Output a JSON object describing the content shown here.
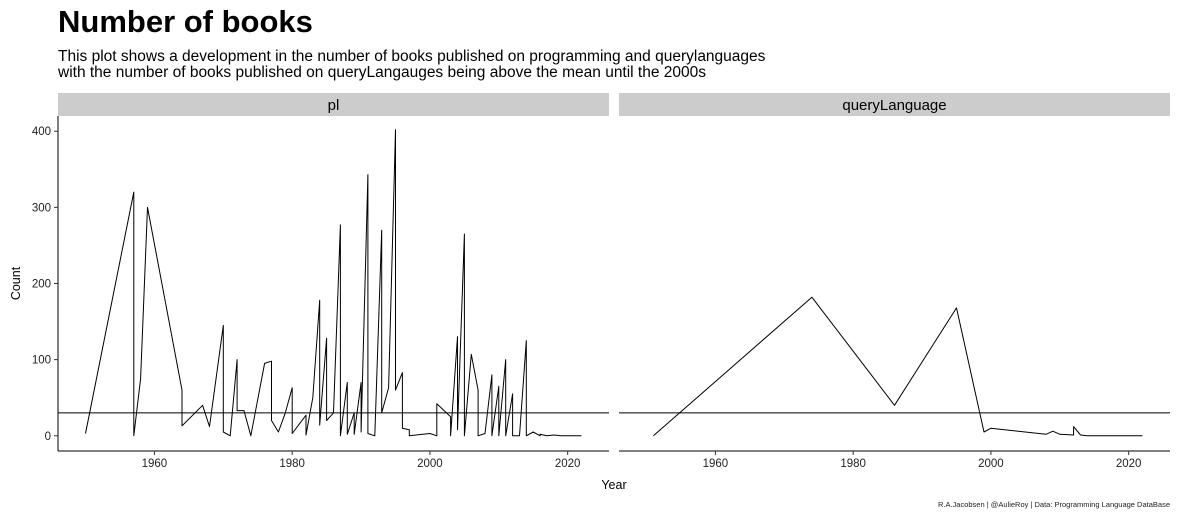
{
  "title": "Number of books",
  "subtitle_lines": [
    "This plot shows a development in the number of books published on programming and querylanguages",
    "with the number of books published on queryLangauges being above the mean until the 2000s"
  ],
  "caption": "R.A.Jacobsen | @AulieRoy | Data: Programming Language DataBase",
  "chart_data": {
    "type": "line",
    "xlabel": "Year",
    "ylabel": "Count",
    "xlim": [
      1946,
      2026
    ],
    "ylim": [
      -20,
      420
    ],
    "x_ticks": [
      1960,
      1980,
      2000,
      2020
    ],
    "y_ticks": [
      0,
      100,
      200,
      300,
      400
    ],
    "mean_line": 30,
    "line_color": "#000000",
    "strip_color": "#cccccc",
    "panels": [
      {
        "strip": "pl",
        "series": [
          {
            "x": [
              1950,
              1957,
              1957,
              1958,
              1959,
              1964,
              1964,
              1967,
              1968,
              1970,
              1970,
              1971,
              1972,
              1972,
              1973,
              1974,
              1976,
              1977,
              1977,
              1978,
              1979,
              1980,
              1980,
              1982,
              1982,
              1983,
              1984,
              1984,
              1985,
              1985,
              1986,
              1987,
              1987,
              1988,
              1988,
              1989,
              1989,
              1990,
              1990,
              1991,
              1991,
              1992,
              1993,
              1993,
              1994,
              1995,
              1995,
              1996,
              1996,
              1997,
              1997,
              1999,
              2000,
              2001,
              2001,
              2003,
              2003,
              2004,
              2004,
              2005,
              2005,
              2006,
              2007,
              2007,
              2008,
              2009,
              2009,
              2010,
              2010,
              2011,
              2011,
              2012,
              2012,
              2013,
              2014,
              2014,
              2015,
              2016,
              2016,
              2017,
              2018,
              2019,
              2022
            ],
            "y": [
              3,
              320,
              0,
              75,
              300,
              60,
              13,
              40,
              12,
              145,
              5,
              0,
              100,
              33,
              33,
              0,
              95,
              98,
              20,
              5,
              30,
              63,
              3,
              27,
              1,
              50,
              178,
              14,
              128,
              20,
              30,
              277,
              0,
              70,
              2,
              30,
              2,
              70,
              5,
              343,
              3,
              0,
              270,
              30,
              63,
              402,
              60,
              83,
              10,
              8,
              0,
              2,
              3,
              0,
              42,
              25,
              0,
              130,
              8,
              265,
              0,
              107,
              60,
              0,
              3,
              80,
              0,
              65,
              0,
              100,
              0,
              55,
              0,
              0,
              125,
              0,
              5,
              0,
              2,
              0,
              1,
              0,
              0
            ]
          }
        ]
      },
      {
        "strip": "queryLanguage",
        "series": [
          {
            "x": [
              1951,
              1974,
              1986,
              1995,
              1999,
              2000,
              2008,
              2009,
              2010,
              2012,
              2012,
              2013,
              2014,
              2022
            ],
            "y": [
              0,
              182,
              40,
              168,
              5,
              10,
              2,
              6,
              2,
              1,
              12,
              1,
              0,
              0
            ]
          }
        ]
      }
    ]
  }
}
